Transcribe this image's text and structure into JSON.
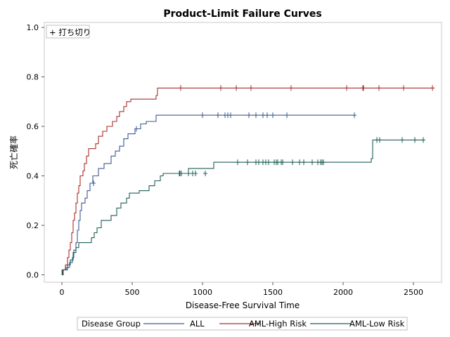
{
  "chart_data": {
    "type": "line",
    "title": "Product-Limit Failure Curves",
    "xlabel": "Disease-Free Survival Time",
    "ylabel": "死亡確率",
    "xlim": [
      -125,
      2700
    ],
    "ylim": [
      -0.03,
      1.02
    ],
    "xticks": [
      0,
      500,
      1000,
      1500,
      2000,
      2500
    ],
    "yticks": [
      0.0,
      0.2,
      0.4,
      0.6,
      0.8,
      1.0
    ],
    "ytick_labels": [
      "0.0",
      "0.2",
      "0.4",
      "0.6",
      "0.8",
      "1.0"
    ],
    "censor_legend": "+ 打ち切り",
    "legend": {
      "title": "Disease Group",
      "position": "bottom"
    },
    "series": [
      {
        "name": "ALL",
        "color": "#3c5a92",
        "steps": [
          [
            0,
            0.0
          ],
          [
            1,
            0.02
          ],
          [
            30,
            0.03
          ],
          [
            55,
            0.05
          ],
          [
            75,
            0.07
          ],
          [
            85,
            0.1
          ],
          [
            100,
            0.13
          ],
          [
            110,
            0.18
          ],
          [
            120,
            0.22
          ],
          [
            130,
            0.26
          ],
          [
            140,
            0.29
          ],
          [
            165,
            0.31
          ],
          [
            180,
            0.34
          ],
          [
            200,
            0.37
          ],
          [
            220,
            0.4
          ],
          [
            260,
            0.43
          ],
          [
            300,
            0.45
          ],
          [
            350,
            0.48
          ],
          [
            380,
            0.5
          ],
          [
            410,
            0.52
          ],
          [
            440,
            0.55
          ],
          [
            470,
            0.57
          ],
          [
            520,
            0.59
          ],
          [
            560,
            0.61
          ],
          [
            600,
            0.62
          ],
          [
            670,
            0.645
          ],
          [
            2090,
            0.645
          ]
        ],
        "censored": [
          [
            225,
            0.37
          ],
          [
            530,
            0.59
          ],
          [
            1000,
            0.645
          ],
          [
            1110,
            0.645
          ],
          [
            1160,
            0.645
          ],
          [
            1180,
            0.645
          ],
          [
            1200,
            0.645
          ],
          [
            1330,
            0.645
          ],
          [
            1380,
            0.645
          ],
          [
            1430,
            0.645
          ],
          [
            1460,
            0.645
          ],
          [
            1500,
            0.645
          ],
          [
            1600,
            0.645
          ],
          [
            2080,
            0.645
          ]
        ]
      },
      {
        "name": "AML-High Risk",
        "color": "#a5302c",
        "steps": [
          [
            0,
            0.0
          ],
          [
            10,
            0.02
          ],
          [
            25,
            0.04
          ],
          [
            40,
            0.07
          ],
          [
            50,
            0.1
          ],
          [
            60,
            0.13
          ],
          [
            70,
            0.17
          ],
          [
            80,
            0.22
          ],
          [
            90,
            0.25
          ],
          [
            100,
            0.29
          ],
          [
            110,
            0.33
          ],
          [
            120,
            0.36
          ],
          [
            130,
            0.4
          ],
          [
            150,
            0.42
          ],
          [
            160,
            0.45
          ],
          [
            175,
            0.48
          ],
          [
            190,
            0.51
          ],
          [
            240,
            0.53
          ],
          [
            260,
            0.56
          ],
          [
            290,
            0.58
          ],
          [
            320,
            0.6
          ],
          [
            360,
            0.62
          ],
          [
            390,
            0.64
          ],
          [
            410,
            0.66
          ],
          [
            440,
            0.68
          ],
          [
            460,
            0.7
          ],
          [
            490,
            0.71
          ],
          [
            670,
            0.725
          ],
          [
            680,
            0.755
          ],
          [
            2650,
            0.755
          ]
        ],
        "censored": [
          [
            845,
            0.755
          ],
          [
            1130,
            0.755
          ],
          [
            1240,
            0.755
          ],
          [
            1345,
            0.755
          ],
          [
            1630,
            0.755
          ],
          [
            2025,
            0.755
          ],
          [
            2140,
            0.755
          ],
          [
            2145,
            0.755
          ],
          [
            2255,
            0.755
          ],
          [
            2430,
            0.755
          ],
          [
            2635,
            0.755
          ]
        ]
      },
      {
        "name": "AML-Low Risk",
        "color": "#1e5e57",
        "steps": [
          [
            0,
            0.0
          ],
          [
            5,
            0.02
          ],
          [
            40,
            0.04
          ],
          [
            60,
            0.06
          ],
          [
            80,
            0.09
          ],
          [
            100,
            0.11
          ],
          [
            120,
            0.13
          ],
          [
            210,
            0.15
          ],
          [
            230,
            0.17
          ],
          [
            250,
            0.19
          ],
          [
            280,
            0.22
          ],
          [
            350,
            0.24
          ],
          [
            390,
            0.27
          ],
          [
            420,
            0.29
          ],
          [
            460,
            0.31
          ],
          [
            480,
            0.33
          ],
          [
            550,
            0.34
          ],
          [
            620,
            0.36
          ],
          [
            660,
            0.38
          ],
          [
            700,
            0.4
          ],
          [
            720,
            0.41
          ],
          [
            900,
            0.43
          ],
          [
            1080,
            0.455
          ],
          [
            2200,
            0.47
          ],
          [
            2210,
            0.545
          ],
          [
            2575,
            0.545
          ]
        ],
        "censored": [
          [
            835,
            0.41
          ],
          [
            840,
            0.41
          ],
          [
            850,
            0.41
          ],
          [
            900,
            0.41
          ],
          [
            930,
            0.41
          ],
          [
            950,
            0.41
          ],
          [
            1020,
            0.41
          ],
          [
            1250,
            0.455
          ],
          [
            1320,
            0.455
          ],
          [
            1380,
            0.455
          ],
          [
            1400,
            0.455
          ],
          [
            1430,
            0.455
          ],
          [
            1450,
            0.455
          ],
          [
            1470,
            0.455
          ],
          [
            1510,
            0.455
          ],
          [
            1525,
            0.455
          ],
          [
            1535,
            0.455
          ],
          [
            1560,
            0.455
          ],
          [
            1570,
            0.455
          ],
          [
            1640,
            0.455
          ],
          [
            1690,
            0.455
          ],
          [
            1720,
            0.455
          ],
          [
            1780,
            0.455
          ],
          [
            1820,
            0.455
          ],
          [
            1840,
            0.455
          ],
          [
            1850,
            0.455
          ],
          [
            1860,
            0.455
          ],
          [
            2240,
            0.545
          ],
          [
            2260,
            0.545
          ],
          [
            2420,
            0.545
          ],
          [
            2510,
            0.545
          ],
          [
            2570,
            0.545
          ]
        ]
      }
    ]
  }
}
